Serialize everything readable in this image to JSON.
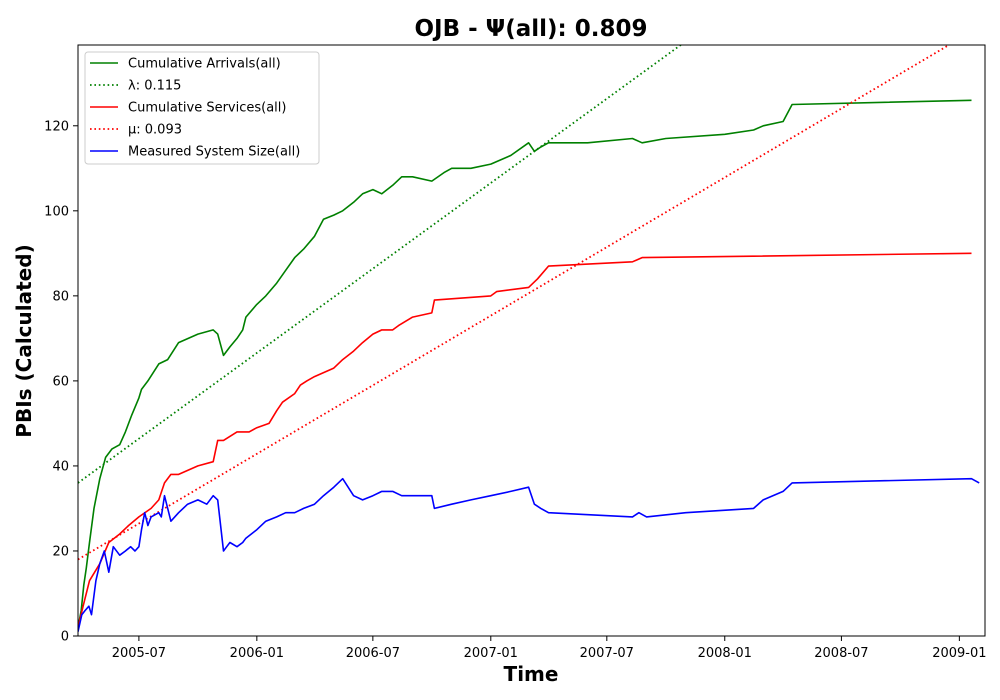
{
  "chart_data": {
    "type": "line",
    "title": "OJB -  Ψ(all): 0.809",
    "xlabel": "Time",
    "ylabel": "PBIs (Calculated)",
    "x_range": [
      "2005-03-28",
      "2009-02-10"
    ],
    "ylim": [
      0,
      139
    ],
    "x_ticks": [
      "2005-07",
      "2006-01",
      "2006-07",
      "2007-01",
      "2007-07",
      "2008-01",
      "2008-07",
      "2009-01"
    ],
    "y_ticks": [
      0,
      20,
      40,
      60,
      80,
      100,
      120
    ],
    "grid": false,
    "legend_position": "top-left",
    "series": [
      {
        "name": "Cumulative Arrivals(all)",
        "style": "solid",
        "color": "#008000",
        "x": [
          "2005-03-28",
          "2005-04-02",
          "2005-04-06",
          "2005-04-10",
          "2005-04-15",
          "2005-04-22",
          "2005-05-01",
          "2005-05-10",
          "2005-05-20",
          "2005-06-01",
          "2005-06-10",
          "2005-06-20",
          "2005-07-01",
          "2005-07-05",
          "2005-07-15",
          "2005-08-01",
          "2005-08-15",
          "2005-09-01",
          "2005-10-01",
          "2005-10-25",
          "2005-11-01",
          "2005-11-10",
          "2005-11-15",
          "2005-11-20",
          "2005-12-01",
          "2005-12-10",
          "2005-12-15",
          "2006-01-01",
          "2006-01-15",
          "2006-02-01",
          "2006-02-15",
          "2006-03-01",
          "2006-03-15",
          "2006-04-01",
          "2006-04-15",
          "2006-05-01",
          "2006-05-15",
          "2006-06-01",
          "2006-06-15",
          "2006-07-01",
          "2006-07-15",
          "2006-08-01",
          "2006-08-15",
          "2006-09-01",
          "2006-10-01",
          "2006-10-20",
          "2006-11-01",
          "2006-12-01",
          "2007-01-01",
          "2007-02-01",
          "2007-03-01",
          "2007-03-10",
          "2007-03-20",
          "2007-04-01",
          "2007-06-01",
          "2007-08-10",
          "2007-08-25",
          "2007-10-01",
          "2008-01-01",
          "2008-02-15",
          "2008-03-01",
          "2008-04-01",
          "2008-04-15",
          "2009-01-20"
        ],
        "values": [
          2,
          6,
          12,
          16,
          22,
          30,
          37,
          42,
          44,
          45,
          48,
          52,
          56,
          58,
          60,
          64,
          65,
          69,
          71,
          72,
          71,
          66,
          67,
          68,
          70,
          72,
          75,
          78,
          80,
          83,
          86,
          89,
          91,
          94,
          98,
          99,
          100,
          102,
          104,
          105,
          104,
          106,
          108,
          108,
          107,
          109,
          110,
          110,
          111,
          113,
          116,
          114,
          115,
          116,
          116,
          117,
          116,
          117,
          118,
          119,
          120,
          121,
          125,
          126
        ]
      },
      {
        "name": "λ: 0.115",
        "style": "dotted",
        "color": "#008000",
        "x": [
          "2005-03-28",
          "2009-02-10"
        ],
        "values": [
          36,
          191
        ]
      },
      {
        "name": "Cumulative Services(all)",
        "style": "solid",
        "color": "#ff0000",
        "x": [
          "2005-03-28",
          "2005-04-05",
          "2005-04-15",
          "2005-05-01",
          "2005-05-15",
          "2005-06-01",
          "2005-06-15",
          "2005-07-01",
          "2005-07-20",
          "2005-08-01",
          "2005-08-10",
          "2005-08-20",
          "2005-09-01",
          "2005-10-01",
          "2005-10-25",
          "2005-11-01",
          "2005-11-10",
          "2005-12-01",
          "2005-12-20",
          "2006-01-01",
          "2006-01-20",
          "2006-02-01",
          "2006-02-10",
          "2006-03-01",
          "2006-03-10",
          "2006-03-20",
          "2006-04-01",
          "2006-05-01",
          "2006-05-15",
          "2006-06-01",
          "2006-06-15",
          "2006-07-01",
          "2006-07-15",
          "2006-08-01",
          "2006-08-10",
          "2006-09-01",
          "2006-10-01",
          "2006-10-05",
          "2007-01-01",
          "2007-01-10",
          "2007-03-01",
          "2007-03-15",
          "2007-04-01",
          "2007-08-10",
          "2007-08-25",
          "2009-01-20"
        ],
        "values": [
          2,
          7,
          13,
          17,
          22,
          24,
          26,
          28,
          30,
          32,
          36,
          38,
          38,
          40,
          41,
          46,
          46,
          48,
          48,
          49,
          50,
          53,
          55,
          57,
          59,
          60,
          61,
          63,
          65,
          67,
          69,
          71,
          72,
          72,
          73,
          75,
          76,
          79,
          80,
          81,
          82,
          84,
          87,
          88,
          89,
          90
        ]
      },
      {
        "name": "μ: 0.093",
        "style": "dotted",
        "color": "#ff0000",
        "x": [
          "2005-03-28",
          "2009-02-10"
        ],
        "values": [
          18,
          144
        ]
      },
      {
        "name": "Measured System Size(all)",
        "style": "solid",
        "color": "#0000ff",
        "x": [
          "2005-03-28",
          "2005-04-03",
          "2005-04-08",
          "2005-04-14",
          "2005-04-18",
          "2005-04-25",
          "2005-05-01",
          "2005-05-08",
          "2005-05-15",
          "2005-05-22",
          "2005-06-01",
          "2005-06-10",
          "2005-06-18",
          "2005-06-25",
          "2005-07-01",
          "2005-07-05",
          "2005-07-10",
          "2005-07-15",
          "2005-07-20",
          "2005-08-01",
          "2005-08-05",
          "2005-08-10",
          "2005-08-20",
          "2005-09-01",
          "2005-09-15",
          "2005-10-01",
          "2005-10-15",
          "2005-10-25",
          "2005-11-01",
          "2005-11-10",
          "2005-11-15",
          "2005-11-20",
          "2005-12-01",
          "2005-12-10",
          "2005-12-15",
          "2006-01-01",
          "2006-01-15",
          "2006-02-01",
          "2006-02-15",
          "2006-03-01",
          "2006-03-15",
          "2006-04-01",
          "2006-04-15",
          "2006-05-01",
          "2006-05-15",
          "2006-06-01",
          "2006-06-15",
          "2006-07-01",
          "2006-07-15",
          "2006-08-01",
          "2006-08-15",
          "2006-09-01",
          "2006-10-01",
          "2006-10-05",
          "2006-11-01",
          "2006-12-01",
          "2007-01-01",
          "2007-02-01",
          "2007-03-01",
          "2007-03-10",
          "2007-03-20",
          "2007-04-01",
          "2007-08-10",
          "2007-08-20",
          "2007-09-01",
          "2007-11-01",
          "2008-02-15",
          "2008-03-01",
          "2008-04-01",
          "2008-04-15",
          "2009-01-20",
          "2009-02-01"
        ],
        "values": [
          1,
          5,
          6,
          7,
          5,
          13,
          17,
          20,
          15,
          21,
          19,
          20,
          21,
          20,
          21,
          25,
          29,
          26,
          28,
          29,
          28,
          33,
          27,
          29,
          31,
          32,
          31,
          33,
          32,
          20,
          21,
          22,
          21,
          22,
          23,
          25,
          27,
          28,
          29,
          29,
          30,
          31,
          33,
          35,
          37,
          33,
          32,
          33,
          34,
          34,
          33,
          33,
          33,
          30,
          31,
          32,
          33,
          34,
          35,
          31,
          30,
          29,
          28,
          29,
          28,
          29,
          30,
          32,
          34,
          36,
          37,
          36
        ]
      }
    ]
  }
}
